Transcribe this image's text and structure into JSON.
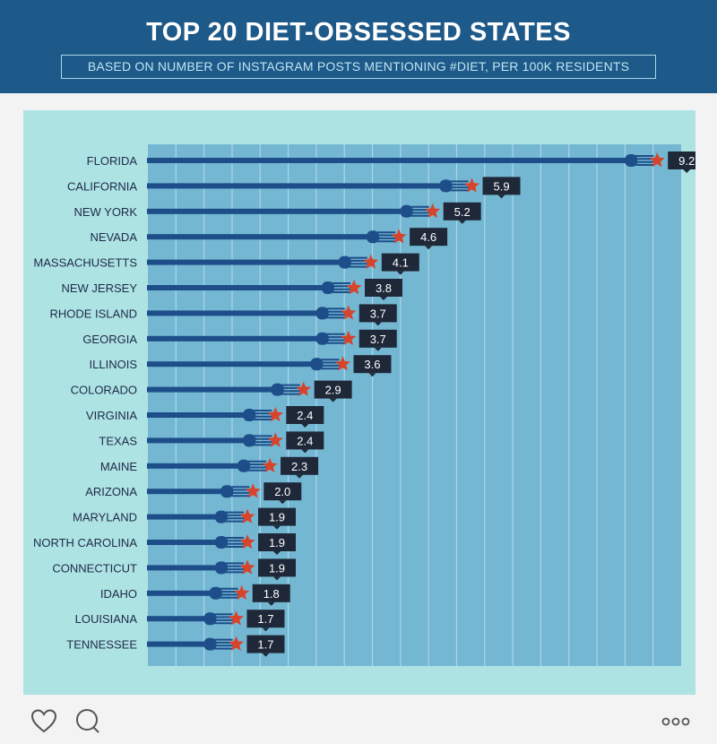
{
  "header": {
    "title": "TOP 20 DIET-OBSESSED STATES",
    "subtitle": "BASED ON NUMBER OF INSTAGRAM POSTS MENTIONING #DIET, PER 100K RESIDENTS"
  },
  "colors": {
    "header_bg": "#1d5989",
    "panel_bg": "#aee3e3",
    "plot_bg": "#74b7d2",
    "fork": "#1d4e89",
    "star": "#d8432c",
    "label_box": "#1f2838"
  },
  "chart_data": {
    "type": "bar",
    "orientation": "horizontal",
    "title": "TOP 20 DIET-OBSESSED STATES",
    "subtitle": "BASED ON NUMBER OF INSTAGRAM POSTS MENTIONING #DIET, PER 100K RESIDENTS",
    "xlim": [
      0,
      9.5
    ],
    "grid": true,
    "categories": [
      "FLORIDA",
      "CALIFORNIA",
      "NEW YORK",
      "NEVADA",
      "MASSACHUSETTS",
      "NEW JERSEY",
      "RHODE ISLAND",
      "GEORGIA",
      "ILLINOIS",
      "COLORADO",
      "VIRGINIA",
      "TEXAS",
      "MAINE",
      "ARIZONA",
      "MARYLAND",
      "NORTH CAROLINA",
      "CONNECTICUT",
      "IDAHO",
      "LOUISIANA",
      "TENNESSEE"
    ],
    "values": [
      9.2,
      5.9,
      5.2,
      4.6,
      4.1,
      3.8,
      3.7,
      3.7,
      3.6,
      2.9,
      2.4,
      2.4,
      2.3,
      2.0,
      1.9,
      1.9,
      1.9,
      1.8,
      1.7,
      1.7
    ],
    "value_labels": [
      "9.2",
      "5.9",
      "5.2",
      "4.6",
      "4.1",
      "3.8",
      "3.7",
      "3.7",
      "3.6",
      "2.9",
      "2.4",
      "2.4",
      "2.3",
      "2.0",
      "1.9",
      "1.9",
      "1.9",
      "1.8",
      "1.7",
      "1.7"
    ]
  },
  "footer": {
    "icons": [
      "heart-icon",
      "comment-icon",
      "more-icon"
    ]
  }
}
